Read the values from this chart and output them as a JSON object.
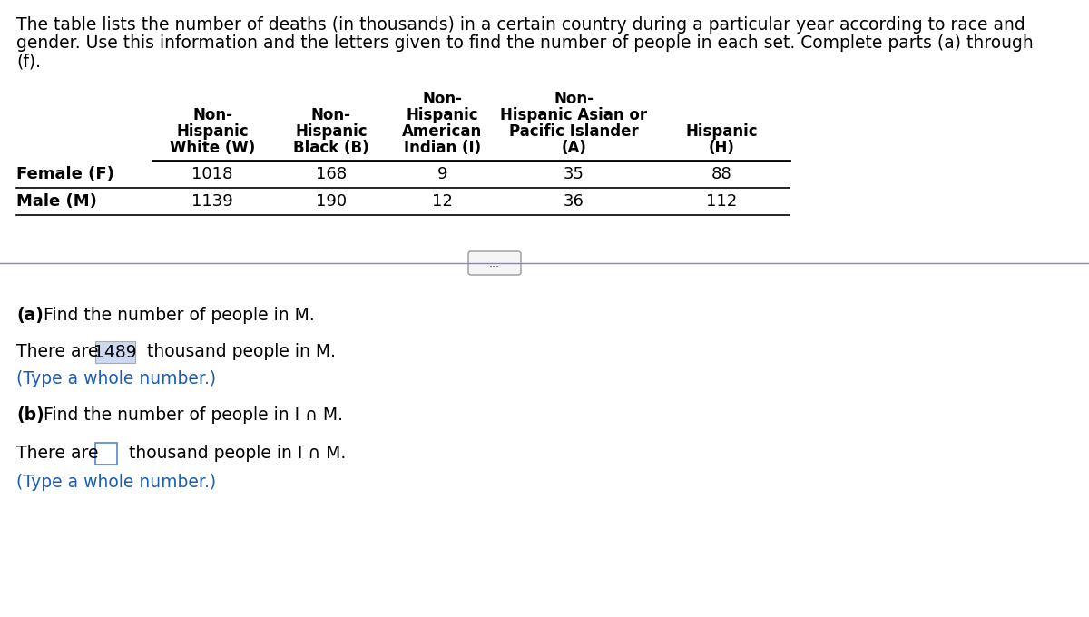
{
  "intro_line1": "The table lists the number of deaths (in thousands) in a certain country during a particular year according to race and",
  "intro_line2": "gender. Use this information and the letters given to find the number of people in each set. Complete parts (a) through",
  "intro_line3": "(f).",
  "col_header_row1": [
    "",
    "",
    "Non-",
    "Non-",
    "",
    ""
  ],
  "col_header_row2": [
    "",
    "Non-",
    "Non-",
    "Hispanic",
    "Non-Hispanic Asian or",
    ""
  ],
  "col_header_row3": [
    "",
    "Hispanic",
    "Hispanic",
    "American",
    "Pacific Islander",
    "Hispanic"
  ],
  "col_header_row4": [
    "",
    "White (W)",
    "Black (B)",
    "Indian (I)",
    "(A)",
    "(H)"
  ],
  "row_labels": [
    "Female (F)",
    "Male (M)"
  ],
  "table_data": [
    [
      1018,
      168,
      9,
      35,
      88
    ],
    [
      1139,
      190,
      12,
      36,
      112
    ]
  ],
  "part_a_bold": "(a)",
  "part_a_text": " Find the number of people in M.",
  "answer_a_prefix": "There are ",
  "answer_a_value": "1489",
  "answer_a_suffix": " thousand people in M.",
  "type_note_a": "(Type a whole number.)",
  "part_b_bold": "(b)",
  "part_b_text": " Find the number of people in I ∩ M.",
  "answer_b_prefix": "There are ",
  "answer_b_suffix": " thousand people in I ∩ M.",
  "type_note_b": "(Type a whole number.)",
  "blue_color": "#1a5eb8",
  "dots_button_text": "...",
  "bg_color": "#ffffff",
  "text_color": "#000000"
}
